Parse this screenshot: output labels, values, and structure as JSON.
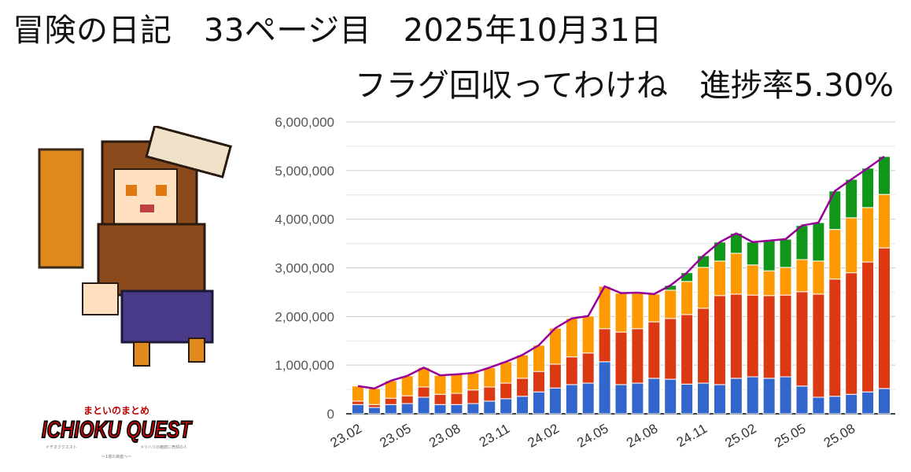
{
  "header": {
    "line1": "冒険の日記　33ページ目　2025年10月31日",
    "line2": "フラグ回収ってわけね　進捗率5.30%"
  },
  "logo": {
    "top": "まといのまとめ",
    "main": "ICHIOKU QUEST",
    "sub_left": "イチオククエスト",
    "sub_right": "メリハリの継続に売却の人",
    "sub_bottom": "〜1億の資産へ〜"
  },
  "colors": {
    "blue": "#3366cc",
    "red": "#dc3912",
    "orange": "#ff9900",
    "green": "#109618",
    "line": "#990099"
  },
  "chart_data": {
    "type": "bar",
    "stacked": true,
    "title": "",
    "xlabel": "",
    "ylabel": "",
    "ylim": [
      0,
      6000000
    ],
    "yticks": [
      "0",
      "1,000,000",
      "2,000,000",
      "3,000,000",
      "4,000,000",
      "5,000,000",
      "6,000,000"
    ],
    "grid": true,
    "categories": [
      "23.02",
      "23.03",
      "23.04",
      "23.05",
      "23.06",
      "23.07",
      "23.08",
      "23.09",
      "23.10",
      "23.11",
      "23.12",
      "24.01",
      "24.02",
      "24.03",
      "24.04",
      "24.05",
      "24.06",
      "24.07",
      "24.08",
      "24.09",
      "24.10",
      "24.11",
      "24.12",
      "25.01",
      "25.02",
      "25.03",
      "25.04",
      "25.05",
      "25.06",
      "25.07",
      "25.08",
      "25.09",
      "25.10"
    ],
    "xtick_labels": [
      "23.02",
      "23.05",
      "23.08",
      "23.11",
      "24.02",
      "24.05",
      "24.08",
      "24.11",
      "25.02",
      "25.05",
      "25.08"
    ],
    "series": [
      {
        "name": "blue",
        "color": "#3366cc",
        "values": [
          190000,
          130000,
          190000,
          210000,
          340000,
          190000,
          190000,
          210000,
          260000,
          310000,
          360000,
          450000,
          530000,
          600000,
          630000,
          1070000,
          600000,
          630000,
          730000,
          710000,
          610000,
          630000,
          600000,
          730000,
          760000,
          730000,
          760000,
          570000,
          340000,
          360000,
          400000,
          450000,
          520000
        ]
      },
      {
        "name": "red",
        "color": "#dc3912",
        "values": [
          70000,
          60000,
          130000,
          160000,
          210000,
          210000,
          230000,
          280000,
          290000,
          320000,
          370000,
          420000,
          490000,
          570000,
          620000,
          680000,
          1080000,
          1120000,
          1160000,
          1250000,
          1430000,
          1540000,
          1830000,
          1730000,
          1680000,
          1700000,
          1680000,
          1940000,
          2120000,
          2410000,
          2500000,
          2670000,
          2890000
        ]
      },
      {
        "name": "orange",
        "color": "#ff9900",
        "values": [
          310000,
          330000,
          360000,
          410000,
          400000,
          390000,
          390000,
          350000,
          400000,
          440000,
          480000,
          540000,
          740000,
          790000,
          760000,
          870000,
          800000,
          740000,
          570000,
          580000,
          680000,
          840000,
          710000,
          840000,
          620000,
          510000,
          570000,
          660000,
          680000,
          1020000,
          1130000,
          1120000,
          1100000
        ]
      },
      {
        "name": "green",
        "color": "#109618",
        "values": [
          0,
          0,
          0,
          0,
          0,
          0,
          0,
          0,
          0,
          0,
          0,
          0,
          0,
          0,
          0,
          0,
          0,
          0,
          0,
          100000,
          180000,
          240000,
          390000,
          410000,
          470000,
          620000,
          580000,
          700000,
          790000,
          790000,
          790000,
          810000,
          780000
        ]
      }
    ],
    "line_series": {
      "name": "total",
      "color": "#990099",
      "values": "sum of stacked series"
    }
  }
}
